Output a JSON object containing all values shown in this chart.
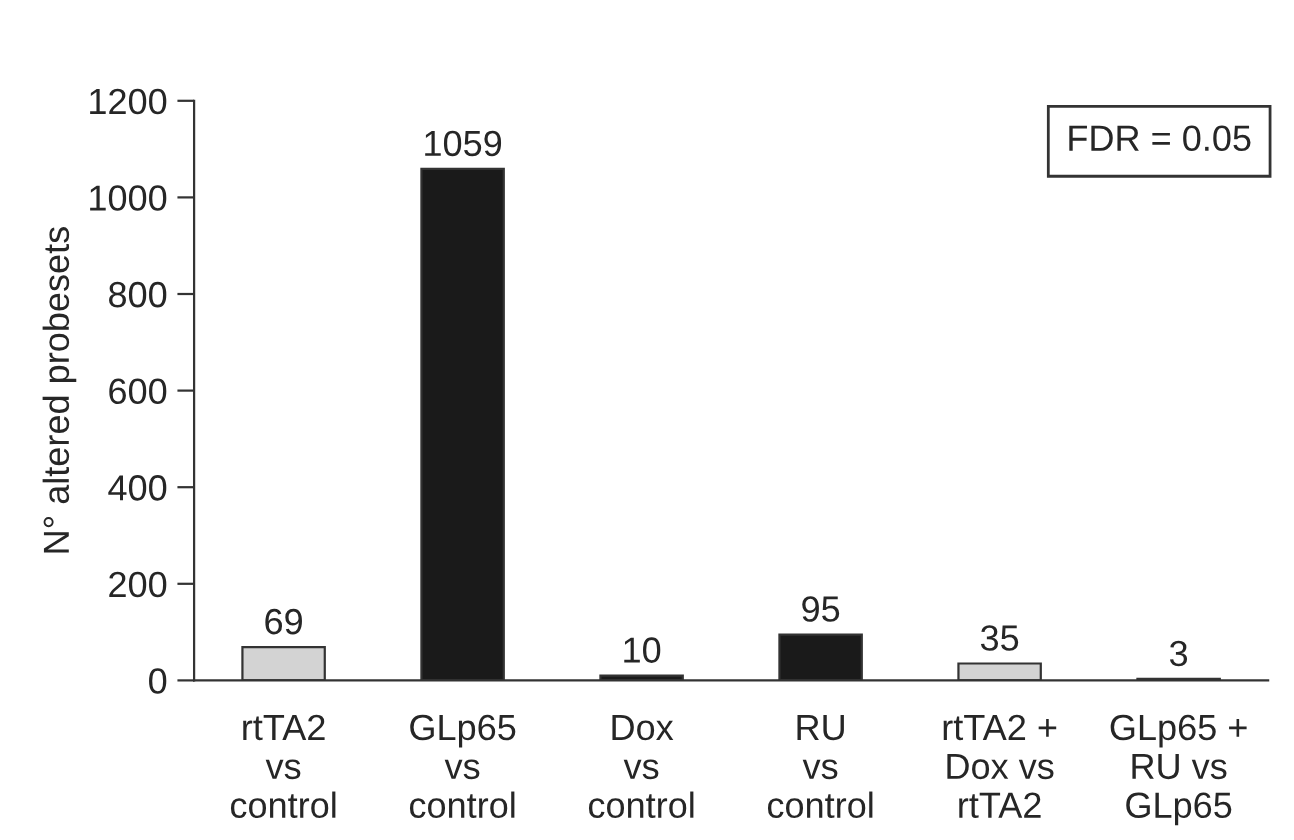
{
  "chart_data": {
    "type": "bar",
    "ylabel": "N° altered probesets",
    "categories": [
      "rtTA2\nvs\ncontrol",
      "GLp65\nvs\ncontrol",
      "Dox\nvs\ncontrol",
      "RU\nvs\ncontrol",
      "rtTA2 +\nDox vs\nrtTA2",
      "GLp65 +\nRU vs\nGLp65"
    ],
    "values": [
      69,
      1059,
      10,
      95,
      35,
      3
    ],
    "colors": [
      "#d3d3d3",
      "#1a1a1a",
      "#1a1a1a",
      "#1a1a1a",
      "#d3d3d3",
      "#d3d3d3"
    ],
    "ylim": [
      0,
      1200
    ],
    "yticks": [
      0,
      200,
      400,
      600,
      800,
      1000,
      1200
    ],
    "data_labels": true,
    "grid": false,
    "legend": false,
    "annotations": [
      "FDR = 0.05"
    ]
  }
}
